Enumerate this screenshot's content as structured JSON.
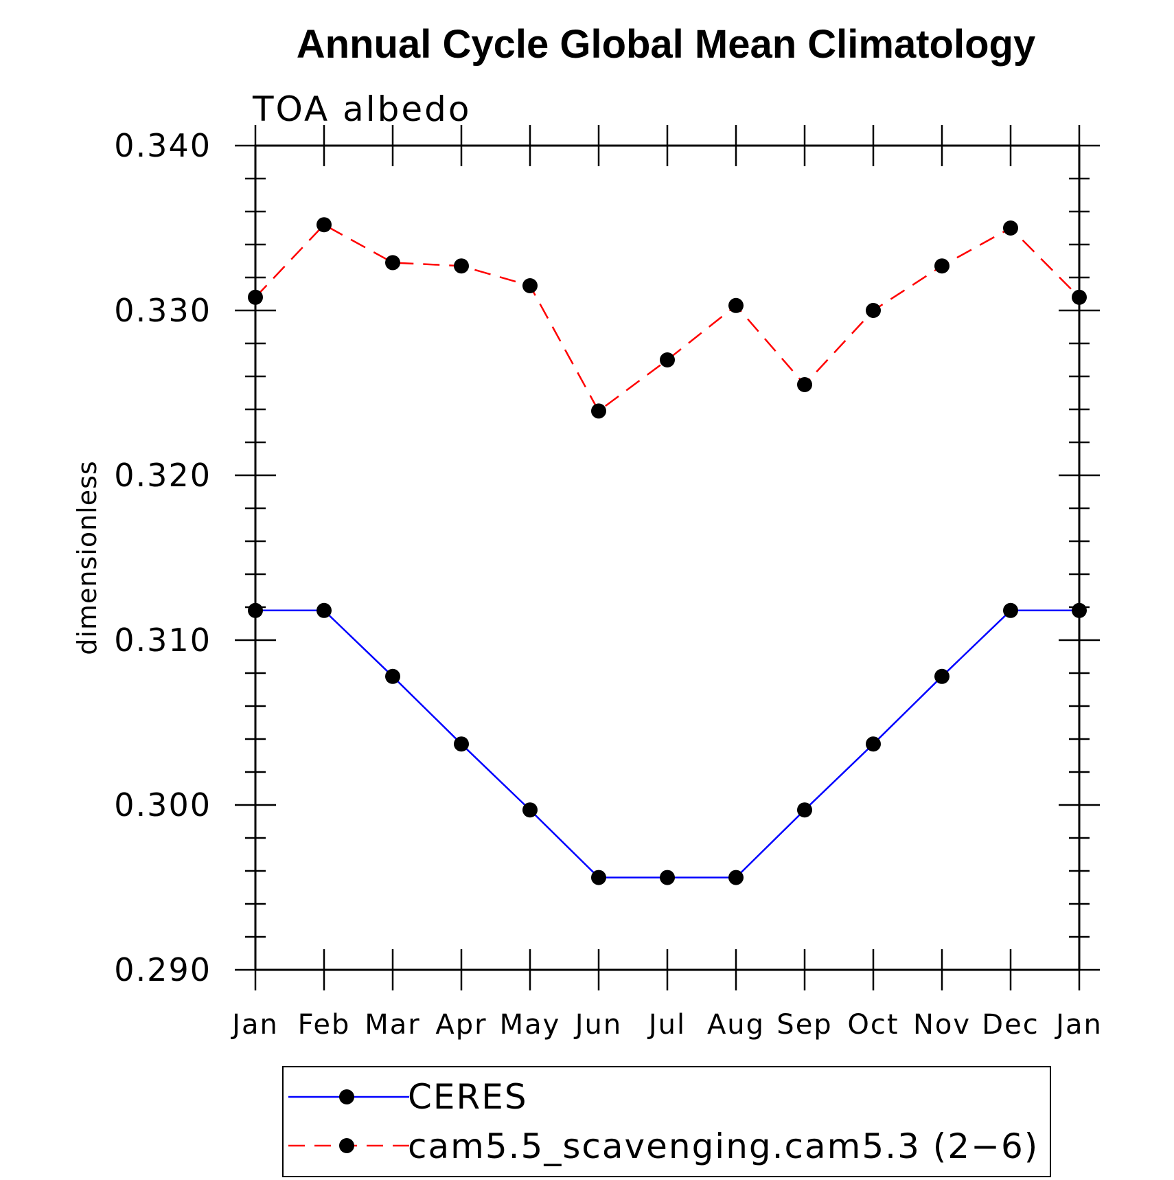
{
  "chart_data": {
    "type": "line",
    "title": "Annual Cycle Global Mean Climatology",
    "subtitle": "TOA albedo",
    "xlabel": "",
    "ylabel": "dimensionless",
    "categories": [
      "Jan",
      "Feb",
      "Mar",
      "Apr",
      "May",
      "Jun",
      "Jul",
      "Aug",
      "Sep",
      "Oct",
      "Nov",
      "Dec",
      "Jan"
    ],
    "ylim": [
      0.29,
      0.34
    ],
    "yticks": [
      "0.290",
      "0.300",
      "0.310",
      "0.320",
      "0.330",
      "0.340"
    ],
    "grid": false,
    "legend_position": "bottom",
    "series": [
      {
        "name": "CERES",
        "color": "#0000ff",
        "line_style": "solid",
        "values": [
          0.3118,
          0.3118,
          0.3078,
          0.3037,
          0.2997,
          0.2956,
          0.2956,
          0.2956,
          0.2997,
          0.3037,
          0.3078,
          0.3118,
          0.3118
        ]
      },
      {
        "name": "cam5.5_scavenging.cam5.3 (2−6)",
        "color": "#ff0000",
        "line_style": "dashed",
        "values": [
          0.3308,
          0.3352,
          0.3329,
          0.3327,
          0.3315,
          0.3239,
          0.327,
          0.3303,
          0.3255,
          0.33,
          0.3327,
          0.335,
          0.3308
        ]
      }
    ]
  }
}
